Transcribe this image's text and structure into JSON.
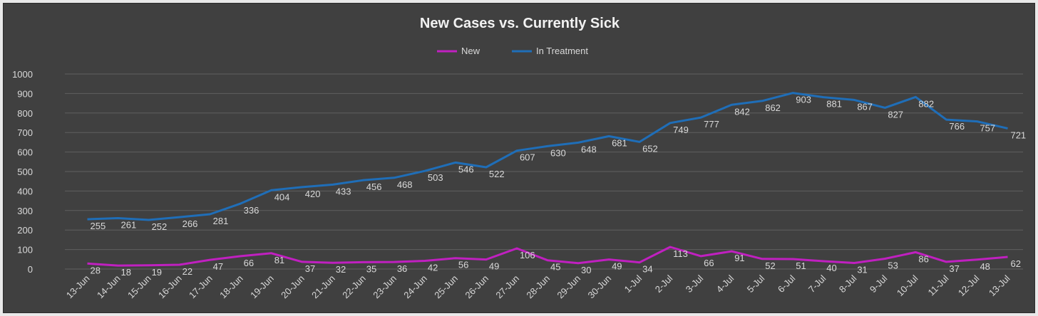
{
  "chart_data": {
    "type": "line",
    "title": "New Cases vs. Currently Sick",
    "legend_position": "top",
    "grid": true,
    "ylim": [
      0,
      1000
    ],
    "yticks": [
      0,
      100,
      200,
      300,
      400,
      500,
      600,
      700,
      800,
      900,
      1000
    ],
    "categories": [
      "13-Jun",
      "14-Jun",
      "15-Jun",
      "16-Jun",
      "17-Jun",
      "18-Jun",
      "19-Jun",
      "20-Jun",
      "21-Jun",
      "22-Jun",
      "23-Jun",
      "24-Jun",
      "25-Jun",
      "26-Jun",
      "27-Jun",
      "28-Jun",
      "29-Jun",
      "30-Jun",
      "1-Jul",
      "2-Jul",
      "3-Jul",
      "4-Jul",
      "5-Jul",
      "6-Jul",
      "7-Jul",
      "8-Jul",
      "9-Jul",
      "10-Jul",
      "11-Jul",
      "12-Jul",
      "13-Jul"
    ],
    "series": [
      {
        "name": "New",
        "color": "#c020c0",
        "values": [
          28,
          18,
          19,
          22,
          47,
          66,
          81,
          37,
          32,
          35,
          36,
          42,
          56,
          49,
          106,
          45,
          30,
          49,
          34,
          113,
          66,
          91,
          52,
          51,
          40,
          31,
          53,
          86,
          37,
          48,
          62
        ]
      },
      {
        "name": "In Treatment",
        "color": "#1f6eb8",
        "values": [
          255,
          261,
          252,
          266,
          281,
          336,
          404,
          420,
          433,
          456,
          468,
          503,
          546,
          522,
          607,
          630,
          648,
          681,
          652,
          749,
          777,
          842,
          862,
          903,
          881,
          867,
          827,
          882,
          766,
          757,
          721
        ]
      }
    ]
  }
}
